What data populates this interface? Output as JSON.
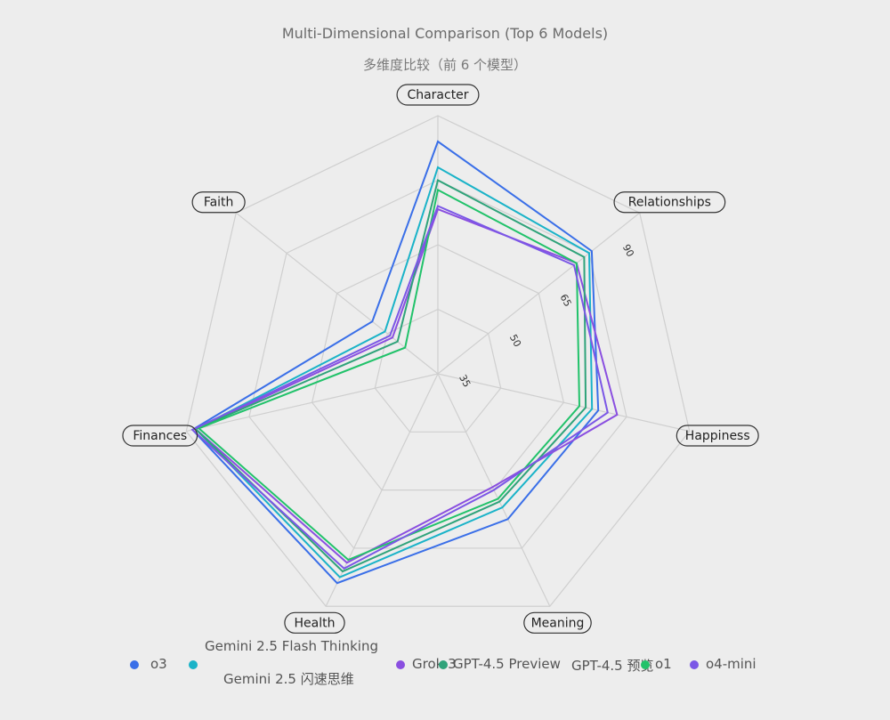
{
  "title": "Multi-Dimensional Comparison (Top 6 Models)",
  "subtitle": "多维度比较（前 6 个模型）",
  "chart_data": {
    "type": "radar",
    "title": "Multi-Dimensional Comparison (Top 6 Models)",
    "subtitle": "多维度比较（前 6 个模型）",
    "axes": [
      "Character",
      "Relationships",
      "Happiness",
      "Meaning",
      "Health",
      "Finances",
      "Faith"
    ],
    "radial_ticks": [
      35,
      50,
      65,
      90
    ],
    "range": [
      20,
      100
    ],
    "series": [
      {
        "name": "o3",
        "color": "#3a6fe8",
        "values": [
          92,
          81,
          71,
          70,
          92,
          98,
          46
        ]
      },
      {
        "name": "Gemini 2.5 Flash Thinking",
        "color": "#1ab3c8",
        "values": [
          84,
          80,
          69,
          66,
          90,
          97,
          41
        ]
      },
      {
        "name": "Grok 3",
        "color": "#8a4fe0",
        "values": [
          71,
          75,
          77,
          59,
          85,
          97,
          38
        ]
      },
      {
        "name": "GPT-4.5 Preview",
        "color": "#2fa37a",
        "values": [
          80,
          78,
          67,
          64,
          88,
          97,
          36
        ]
      },
      {
        "name": "o1",
        "color": "#21c26a",
        "values": [
          77,
          75,
          65,
          63,
          84,
          96,
          33
        ]
      },
      {
        "name": "o4-mini",
        "color": "#7b57e6",
        "values": [
          72,
          74,
          74,
          60,
          87,
          98,
          39
        ]
      }
    ]
  },
  "legend": {
    "items": [
      {
        "label": "o3",
        "color": "#3a6fe8"
      },
      {
        "label": "Gemini 2.5 Flash Thinking",
        "label_cn": "Gemini 2.5 闪速思维",
        "color": "#1ab3c8"
      },
      {
        "label": "Grok 3",
        "color": "#8a4fe0"
      },
      {
        "label": "GPT-4.5 Preview",
        "color": "#2fa37a"
      },
      {
        "label": "GPT-4.5 预览",
        "color": "#2fa37a"
      },
      {
        "label": "o1",
        "color": "#21c26a"
      },
      {
        "label": "o4-mini",
        "color": "#7b57e6"
      }
    ]
  }
}
